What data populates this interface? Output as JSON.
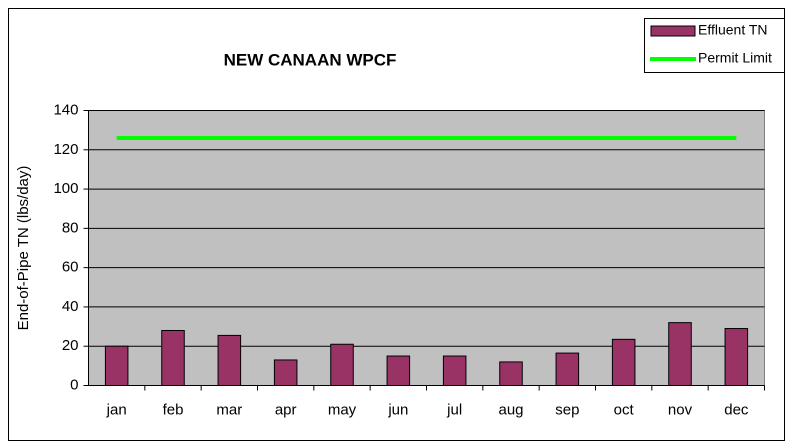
{
  "chart_data": {
    "type": "bar",
    "title": "NEW CANAAN WPCF",
    "y_label": "End-of-Pipe TN (lbs/day)",
    "categories": [
      "jan",
      "feb",
      "mar",
      "apr",
      "may",
      "jun",
      "jul",
      "aug",
      "sep",
      "oct",
      "nov",
      "dec"
    ],
    "series": [
      {
        "name": "Effluent TN",
        "type": "bar",
        "color": "#993366",
        "values": [
          20,
          28,
          25.5,
          13,
          21,
          15,
          15,
          12,
          16.5,
          23.5,
          32,
          29
        ]
      },
      {
        "name": "Permit Limit",
        "type": "line",
        "color": "#00ff00",
        "values": [
          126,
          126,
          126,
          126,
          126,
          126,
          126,
          126,
          126,
          126,
          126,
          126
        ]
      }
    ],
    "ylim": [
      0,
      140
    ],
    "yticks": [
      0,
      20,
      40,
      60,
      80,
      100,
      120,
      140
    ],
    "grid": true,
    "legend": "top-right"
  }
}
